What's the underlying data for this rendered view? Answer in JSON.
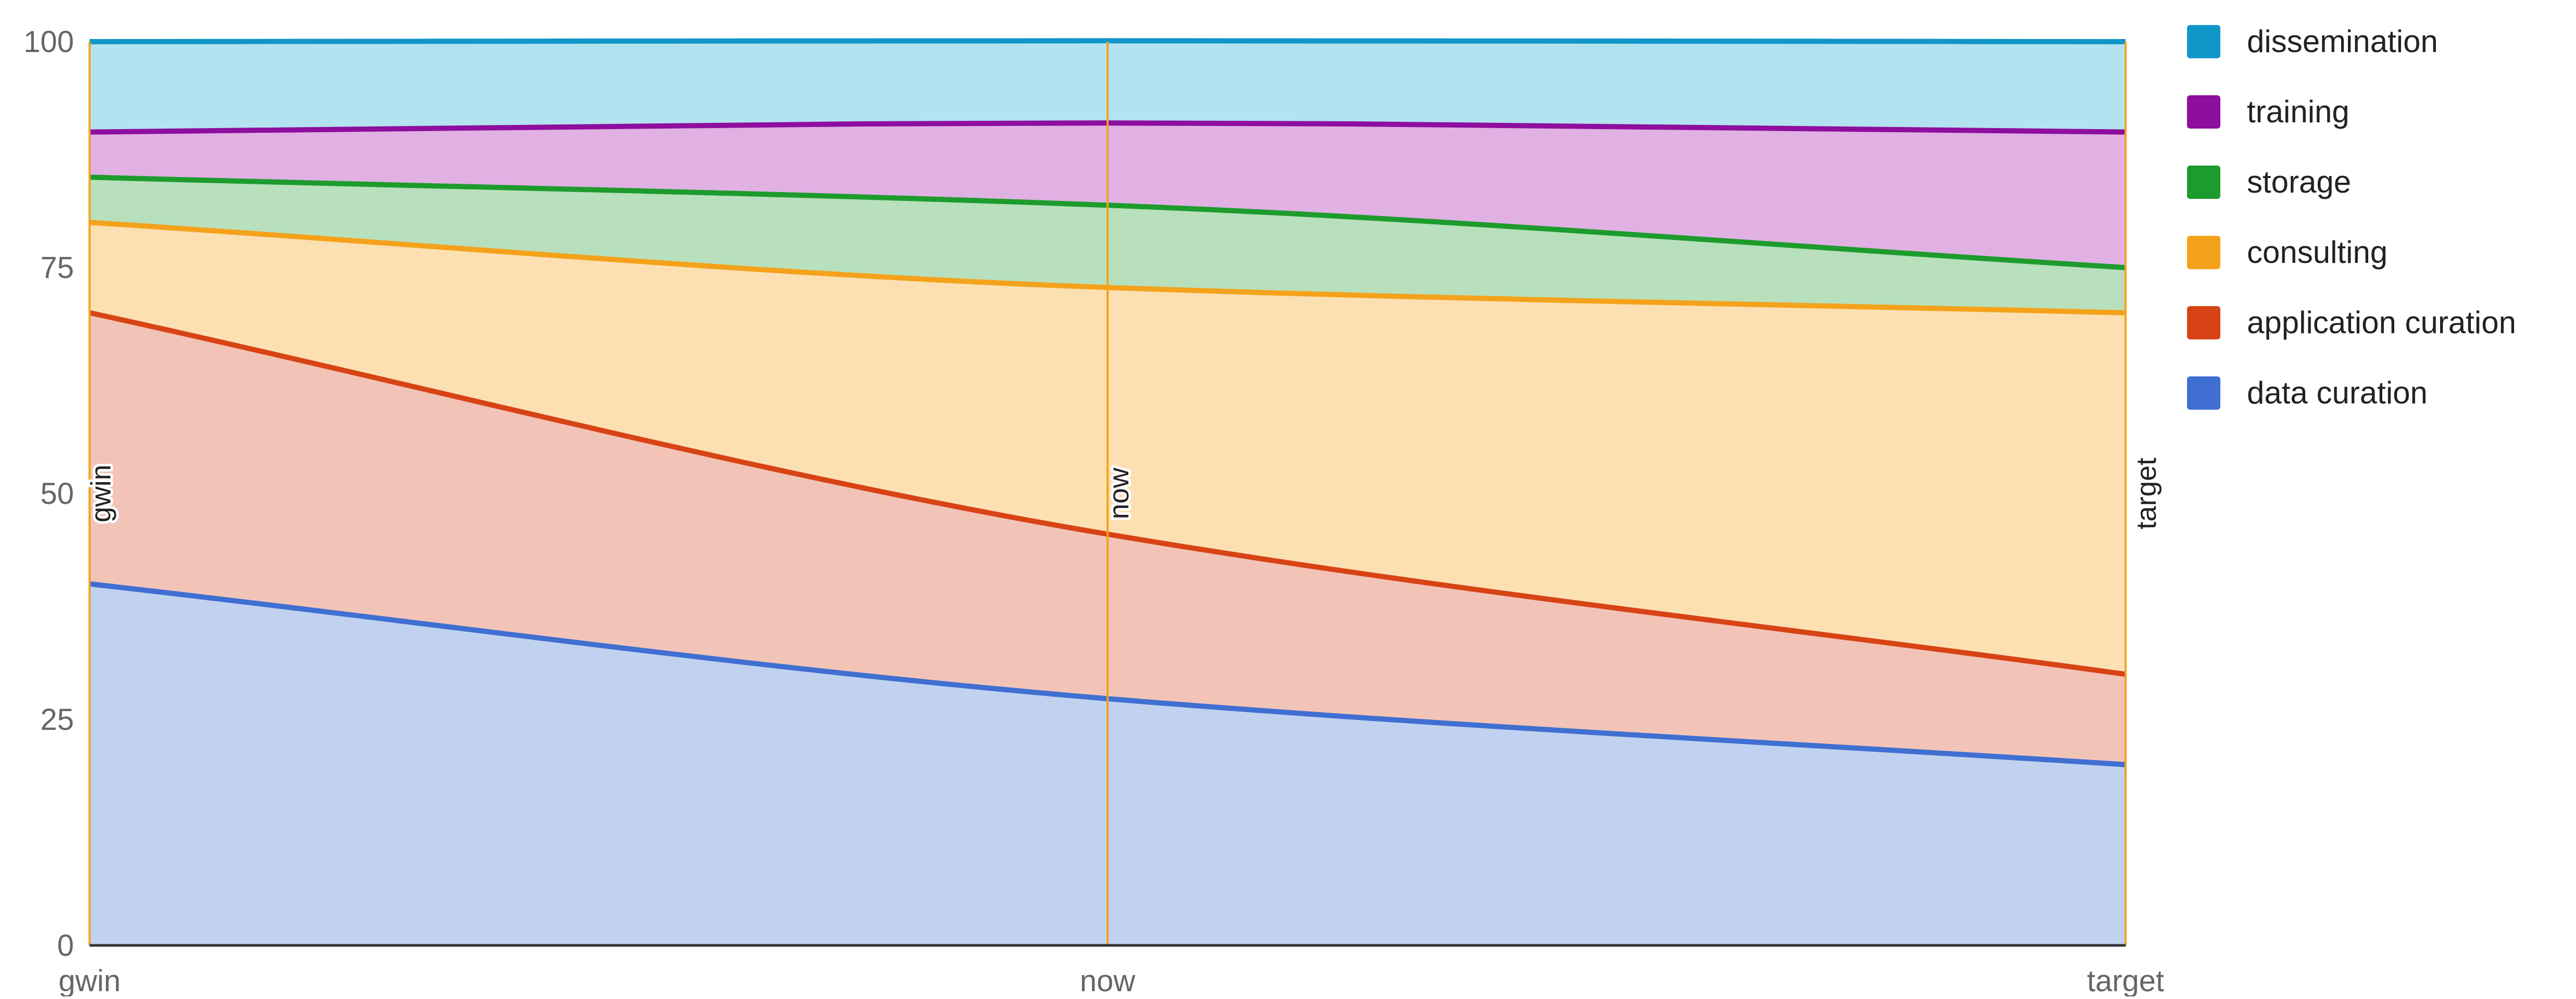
{
  "chart_data": {
    "type": "area",
    "stacked": true,
    "categories": [
      "gwin",
      "now",
      "target"
    ],
    "y_axis": {
      "ylim": [
        0,
        100
      ],
      "ticks": [
        0,
        25,
        50,
        75,
        100
      ],
      "tick_labels": [
        "0",
        "25",
        "50",
        "75",
        "100"
      ]
    },
    "grid": true,
    "legend_position": "right",
    "annotations": [
      {
        "x": "gwin",
        "label": "gwin"
      },
      {
        "x": "now",
        "label": "now"
      },
      {
        "x": "target",
        "label": "target"
      }
    ],
    "series": [
      {
        "name": "data curation",
        "color": "#3f6fd1",
        "fill": "#c1d2f0",
        "values": [
          40,
          27.3,
          20
        ]
      },
      {
        "name": "application curation",
        "color": "#d84315",
        "fill": "#f2c4b8",
        "values": [
          30,
          18.2,
          10
        ]
      },
      {
        "name": "consulting",
        "color": "#f4a21b",
        "fill": "#fde0b2",
        "values": [
          10,
          27.3,
          40
        ]
      },
      {
        "name": "storage",
        "color": "#1d9b2d",
        "fill": "#b8e0bc",
        "values": [
          5,
          9.1,
          5
        ]
      },
      {
        "name": "training",
        "color": "#8e0e9e",
        "fill": "#e0b1e2",
        "values": [
          5,
          9.1,
          15
        ]
      },
      {
        "name": "dissemination",
        "color": "#1196c9",
        "fill": "#b3e2f0",
        "values": [
          10,
          9.1,
          10
        ]
      }
    ]
  }
}
